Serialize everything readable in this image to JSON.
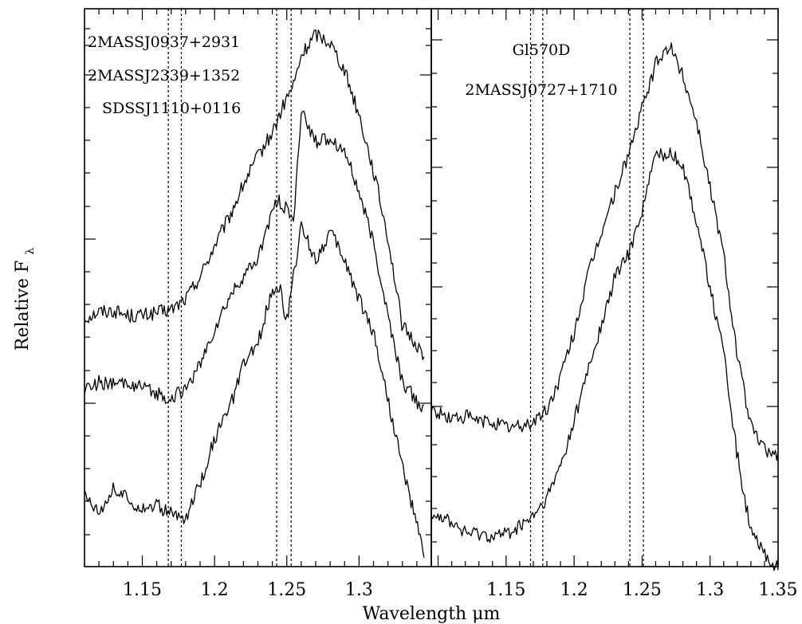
{
  "chart_data": {
    "type": "line",
    "xlabel": "Wavelength μm",
    "ylabel": "Relative F",
    "ylabel_subscript": "λ",
    "x_tick_labels": [
      "1.15",
      "1.2",
      "1.25",
      "1.3",
      "1.35"
    ],
    "panels": [
      {
        "xlim": [
          1.11,
          1.35
        ],
        "ylim": [
          0,
          1
        ],
        "x_ticks": [
          1.15,
          1.2,
          1.25,
          1.3
        ],
        "dotted_lines": [
          1.168,
          1.177,
          1.243,
          1.253
        ],
        "legend_entries": [
          "2MASSJ0937+2931",
          "2MASSJ2339+1352",
          "SDSSJ1110+0116"
        ],
        "series": [
          {
            "x": [
              1.11,
              1.12,
              1.13,
              1.14,
              1.15,
              1.16,
              1.17,
              1.18,
              1.19,
              1.2,
              1.21,
              1.22,
              1.23,
              1.24,
              1.25,
              1.255,
              1.26,
              1.27,
              1.28,
              1.29,
              1.3,
              1.31,
              1.32,
              1.33,
              1.345
            ],
            "y": [
              0.445,
              0.457,
              0.459,
              0.45,
              0.45,
              0.455,
              0.46,
              0.48,
              0.52,
              0.575,
              0.625,
              0.685,
              0.735,
              0.778,
              0.84,
              0.865,
              0.915,
              0.955,
              0.94,
              0.89,
              0.81,
              0.71,
              0.59,
              0.43,
              0.38
            ]
          },
          {
            "x": [
              1.11,
              1.12,
              1.13,
              1.14,
              1.15,
              1.16,
              1.17,
              1.18,
              1.19,
              1.2,
              1.21,
              1.22,
              1.23,
              1.24,
              1.245,
              1.25,
              1.255,
              1.26,
              1.27,
              1.28,
              1.29,
              1.3,
              1.31,
              1.32,
              1.33,
              1.345
            ],
            "y": [
              0.32,
              0.33,
              0.325,
              0.33,
              0.32,
              0.31,
              0.3,
              0.32,
              0.36,
              0.425,
              0.48,
              0.52,
              0.55,
              0.64,
              0.655,
              0.64,
              0.62,
              0.82,
              0.76,
              0.77,
              0.745,
              0.67,
              0.58,
              0.45,
              0.33,
              0.28
            ]
          },
          {
            "x": [
              1.11,
              1.12,
              1.13,
              1.14,
              1.15,
              1.16,
              1.17,
              1.18,
              1.19,
              1.2,
              1.21,
              1.22,
              1.23,
              1.24,
              1.245,
              1.25,
              1.26,
              1.27,
              1.28,
              1.29,
              1.3,
              1.31,
              1.32,
              1.33,
              1.345
            ],
            "y": [
              0.13,
              0.1,
              0.14,
              0.12,
              0.105,
              0.11,
              0.095,
              0.085,
              0.15,
              0.23,
              0.28,
              0.36,
              0.4,
              0.5,
              0.5,
              0.44,
              0.61,
              0.55,
              0.6,
              0.55,
              0.48,
              0.42,
              0.3,
              0.18,
              0.02
            ]
          }
        ]
      },
      {
        "xlim": [
          1.095,
          1.35
        ],
        "ylim": [
          0,
          1
        ],
        "x_ticks": [
          1.15,
          1.2,
          1.25,
          1.3,
          1.35
        ],
        "dotted_lines": [
          1.168,
          1.177,
          1.241,
          1.251
        ],
        "legend_entries": [
          "Gl570D",
          "2MASSJ0727+1710"
        ],
        "series": [
          {
            "x": [
              1.095,
              1.11,
              1.12,
              1.13,
              1.14,
              1.15,
              1.16,
              1.17,
              1.18,
              1.19,
              1.2,
              1.21,
              1.22,
              1.23,
              1.24,
              1.25,
              1.26,
              1.27,
              1.28,
              1.29,
              1.3,
              1.31,
              1.32,
              1.33,
              1.34,
              1.35
            ],
            "y": [
              0.28,
              0.265,
              0.27,
              0.26,
              0.26,
              0.25,
              0.25,
              0.26,
              0.28,
              0.34,
              0.42,
              0.52,
              0.6,
              0.67,
              0.74,
              0.82,
              0.9,
              0.935,
              0.88,
              0.8,
              0.68,
              0.56,
              0.38,
              0.25,
              0.21,
              0.2
            ]
          },
          {
            "x": [
              1.095,
              1.11,
              1.12,
              1.13,
              1.14,
              1.15,
              1.16,
              1.17,
              1.18,
              1.19,
              1.2,
              1.21,
              1.22,
              1.23,
              1.24,
              1.25,
              1.26,
              1.27,
              1.28,
              1.29,
              1.3,
              1.31,
              1.32,
              1.33,
              1.34,
              1.35
            ],
            "y": [
              0.1,
              0.08,
              0.06,
              0.06,
              0.055,
              0.06,
              0.07,
              0.09,
              0.12,
              0.18,
              0.26,
              0.35,
              0.43,
              0.52,
              0.56,
              0.64,
              0.74,
              0.74,
              0.72,
              0.62,
              0.5,
              0.38,
              0.2,
              0.06,
              0.02,
              0.0
            ]
          }
        ]
      }
    ]
  }
}
